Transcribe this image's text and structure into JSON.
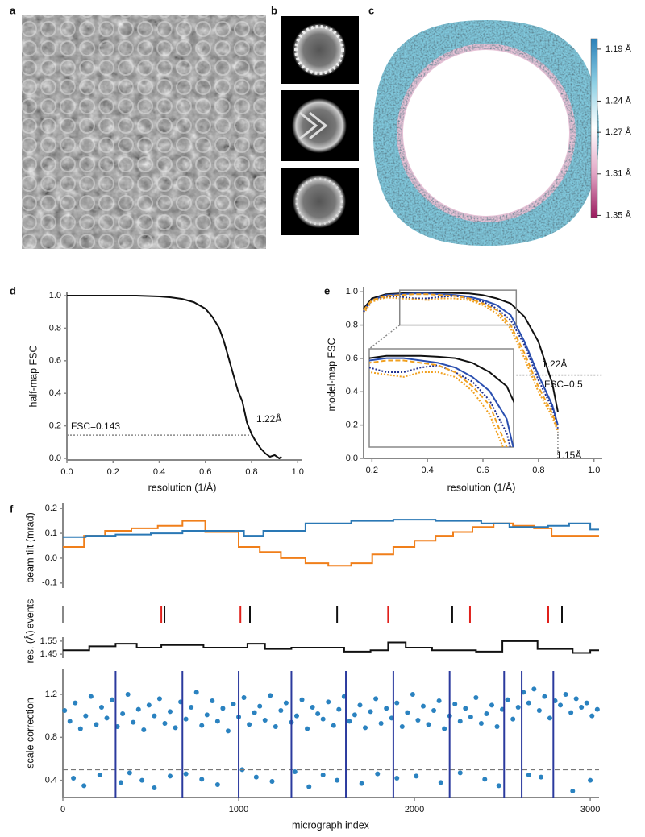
{
  "panel_labels": [
    "a",
    "b",
    "c",
    "d",
    "e",
    "f"
  ],
  "chart_data": [
    {
      "type": "colorbar",
      "colormap": [
        "#2b80b8",
        "#8fd0e4",
        "#ffffff",
        "#e2a7c6",
        "#9b1b5e"
      ],
      "clim": [
        1.18,
        1.352
      ],
      "ticks": [
        {
          "value": 1.19,
          "label": "1.19 Å"
        },
        {
          "value": 1.24,
          "label": "1.24 Å"
        },
        {
          "value": 1.27,
          "label": "1.27 Å"
        },
        {
          "value": 1.31,
          "label": "1.31 Å"
        },
        {
          "value": 1.35,
          "label": "1.35 Å"
        }
      ]
    },
    {
      "type": "line",
      "y_label": "half-map FSC",
      "x_label": "resolution (1/Å)",
      "xlim": [
        0,
        1.02
      ],
      "ylim": [
        -0.01,
        1.02
      ],
      "xticks": [
        {
          "value": 0,
          "label": "0.0"
        },
        0.2,
        0.4,
        0.6,
        0.8,
        {
          "value": 1,
          "label": "1.0"
        }
      ],
      "yticks": [
        {
          "value": 0,
          "label": "0.0"
        },
        0.2,
        0.4,
        0.6,
        0.8,
        {
          "value": 1,
          "label": "1.0"
        }
      ],
      "x": [
        0,
        0.1,
        0.2,
        0.3,
        0.4,
        0.45,
        0.5,
        0.55,
        0.6,
        0.63,
        0.66,
        0.68,
        0.7,
        0.72,
        0.74,
        0.76,
        0.78,
        0.8,
        0.82,
        0.84,
        0.86,
        0.88,
        0.9,
        0.92,
        0.93
      ],
      "series": [
        {
          "color": "#111111",
          "values": [
            1,
            1,
            1,
            1,
            0.995,
            0.99,
            0.98,
            0.96,
            0.92,
            0.87,
            0.8,
            0.72,
            0.62,
            0.52,
            0.42,
            0.35,
            0.22,
            0.15,
            0.1,
            0.06,
            0.03,
            0.01,
            0.02,
            0,
            0.01
          ]
        }
      ],
      "threshold": 0.143,
      "threshold_end": 0.8,
      "annotations": [
        "FSC=0.143",
        "1.22Å"
      ]
    },
    {
      "type": "line",
      "y_label": "model-map FSC",
      "x_label": "resolution (1/Å)",
      "xlim": [
        0.17,
        1.03
      ],
      "ylim": [
        0,
        1.03
      ],
      "xticks": [
        0.2,
        0.4,
        0.6,
        0.8,
        {
          "value": 1,
          "label": "1.0"
        }
      ],
      "yticks": [
        {
          "value": 0,
          "label": "0.0"
        },
        0.2,
        0.4,
        0.6,
        0.8,
        {
          "value": 1,
          "label": "1.0"
        }
      ],
      "x": [
        0.17,
        0.2,
        0.25,
        0.3,
        0.35,
        0.4,
        0.45,
        0.5,
        0.55,
        0.6,
        0.65,
        0.7,
        0.75,
        0.8,
        0.85,
        0.87
      ],
      "series": [
        {
          "color": "#111111",
          "dash": "solid",
          "values": [
            0.9,
            0.96,
            0.985,
            0.99,
            0.995,
            0.995,
            0.995,
            0.993,
            0.99,
            0.98,
            0.96,
            0.93,
            0.85,
            0.7,
            0.45,
            0.28
          ]
        },
        {
          "color": "#2a4fb0",
          "dash": "solid",
          "values": [
            0.89,
            0.95,
            0.98,
            0.985,
            0.99,
            0.99,
            0.985,
            0.98,
            0.97,
            0.95,
            0.92,
            0.86,
            0.7,
            0.5,
            0.32,
            0.2
          ]
        },
        {
          "color": "#1f2f8f",
          "dash": "dotted",
          "values": [
            0.88,
            0.95,
            0.97,
            0.97,
            0.96,
            0.96,
            0.97,
            0.975,
            0.96,
            0.94,
            0.9,
            0.83,
            0.68,
            0.47,
            0.3,
            0.18
          ]
        },
        {
          "color": "#f0a020",
          "dash": "dashed",
          "values": [
            0.89,
            0.95,
            0.975,
            0.98,
            0.985,
            0.985,
            0.98,
            0.975,
            0.96,
            0.93,
            0.89,
            0.8,
            0.63,
            0.43,
            0.27,
            0.17
          ]
        },
        {
          "color": "#f0a020",
          "dash": "dotted",
          "values": [
            0.87,
            0.94,
            0.965,
            0.96,
            0.955,
            0.95,
            0.96,
            0.96,
            0.95,
            0.92,
            0.87,
            0.78,
            0.6,
            0.4,
            0.25,
            0.16
          ]
        }
      ],
      "threshold": 0.5,
      "threshold_start": 0.72,
      "cutoff": 0.87,
      "inset": {
        "xlim": [
          0.3,
          0.72
        ],
        "ylim": [
          0.8,
          1.01
        ]
      },
      "annotations": [
        "1.22Å",
        "FSC=0.5",
        "1.15Å"
      ]
    },
    {
      "type": "step",
      "y_label": "beam tilt (mrad)",
      "xlim": [
        0,
        3050
      ],
      "ylim": [
        -0.12,
        0.22
      ],
      "yticks": [
        -0.1,
        {
          "value": 0,
          "label": "0.0"
        },
        0.1,
        0.2
      ],
      "series": [
        {
          "color": "#f07f1a",
          "x": [
            0,
            120,
            240,
            390,
            540,
            680,
            810,
            1000,
            1120,
            1240,
            1380,
            1510,
            1640,
            1760,
            1880,
            2000,
            2120,
            2220,
            2330,
            2450,
            2560,
            2680,
            2780
          ],
          "values": [
            0.045,
            0.09,
            0.11,
            0.12,
            0.13,
            0.15,
            0.105,
            0.045,
            0.025,
            0,
            -0.02,
            -0.03,
            -0.02,
            0.015,
            0.045,
            0.07,
            0.09,
            0.105,
            0.125,
            0.14,
            0.13,
            0.12,
            0.09
          ]
        },
        {
          "color": "#2a78b5",
          "x": [
            0,
            130,
            300,
            500,
            680,
            1030,
            1140,
            1380,
            1640,
            1880,
            2120,
            2380,
            2540,
            2760,
            2880,
            3000
          ],
          "values": [
            0.085,
            0.09,
            0.095,
            0.1,
            0.11,
            0.09,
            0.11,
            0.14,
            0.15,
            0.155,
            0.15,
            0.14,
            0.125,
            0.13,
            0.14,
            0.115
          ]
        }
      ]
    },
    {
      "type": "events",
      "y_label": "events",
      "xlim": [
        0,
        3050
      ],
      "series": [
        {
          "color": "#888888",
          "x": [
            0
          ]
        },
        {
          "color": "#e0201b",
          "x": [
            560,
            1010,
            1850,
            2316,
            2761
          ]
        },
        {
          "color": "#111111",
          "x": [
            578,
            1064,
            1560,
            2215,
            2839
          ]
        }
      ]
    },
    {
      "type": "step",
      "y_label": "res. (Å)",
      "xlim": [
        0,
        3050
      ],
      "ylim": [
        1.42,
        1.58
      ],
      "yticks": [
        1.45,
        1.55
      ],
      "series": [
        {
          "color": "#111111",
          "x": [
            0,
            150,
            300,
            420,
            560,
            800,
            1050,
            1150,
            1300,
            1600,
            1750,
            1850,
            1950,
            2100,
            2350,
            2500,
            2700,
            2900,
            3000
          ],
          "values": [
            1.48,
            1.51,
            1.53,
            1.5,
            1.52,
            1.5,
            1.53,
            1.49,
            1.5,
            1.47,
            1.48,
            1.54,
            1.5,
            1.48,
            1.47,
            1.55,
            1.49,
            1.46,
            1.48
          ]
        }
      ]
    },
    {
      "type": "scatter",
      "y_label": "scale correction",
      "x_label": "micrograph index",
      "xlim": [
        0,
        3050
      ],
      "ylim": [
        0.24,
        1.44
      ],
      "xticks": [
        0,
        1000,
        2000,
        3000
      ],
      "yticks": [
        0.4,
        0.8,
        1.2
      ],
      "color": "#2a82c0",
      "x": [
        10,
        40,
        70,
        100,
        130,
        160,
        190,
        220,
        250,
        280,
        310,
        340,
        370,
        400,
        430,
        460,
        490,
        520,
        550,
        580,
        610,
        640,
        670,
        700,
        730,
        760,
        790,
        820,
        850,
        880,
        910,
        940,
        970,
        1000,
        1030,
        1060,
        1090,
        1120,
        1150,
        1180,
        1210,
        1240,
        1270,
        1300,
        1330,
        1360,
        1390,
        1420,
        1450,
        1480,
        1510,
        1540,
        1570,
        1600,
        1630,
        1660,
        1690,
        1720,
        1750,
        1780,
        1810,
        1840,
        1870,
        1900,
        1930,
        1960,
        1990,
        2020,
        2050,
        2080,
        2110,
        2140,
        2170,
        2200,
        2230,
        2260,
        2290,
        2320,
        2350,
        2380,
        2410,
        2440,
        2470,
        2500,
        2530,
        2560,
        2590,
        2620,
        2650,
        2680,
        2710,
        2740,
        2770,
        2800,
        2830,
        2860,
        2890,
        2920,
        2950,
        2980,
        3010,
        3040,
        60,
        120,
        210,
        330,
        380,
        450,
        520,
        610,
        700,
        790,
        880,
        1020,
        1100,
        1190,
        1320,
        1400,
        1480,
        1560,
        1700,
        1790,
        1900,
        2010,
        2150,
        2260,
        2400,
        2480,
        2650,
        2720,
        2900,
        3000
      ],
      "values": [
        1.05,
        0.95,
        1.12,
        0.88,
        1.0,
        1.18,
        0.92,
        1.08,
        0.98,
        1.15,
        0.9,
        1.02,
        1.2,
        0.94,
        1.06,
        0.87,
        1.1,
        1.0,
        1.16,
        0.93,
        1.04,
        0.89,
        1.13,
        0.97,
        1.08,
        1.22,
        0.91,
        1.01,
        1.14,
        0.95,
        1.07,
        0.86,
        1.11,
        0.99,
        1.17,
        0.92,
        1.03,
        1.09,
        0.96,
        1.19,
        0.9,
        1.05,
        1.12,
        0.94,
        1.0,
        1.15,
        0.88,
        1.08,
        1.02,
        0.97,
        1.13,
        0.91,
        1.06,
        1.18,
        0.95,
        1.01,
        1.1,
        0.89,
        1.04,
        1.16,
        0.93,
        1.07,
        0.98,
        1.12,
        0.9,
        1.03,
        1.2,
        0.96,
        1.09,
        0.92,
        1.05,
        1.14,
        0.88,
        1.0,
        1.11,
        0.95,
        1.07,
        0.99,
        1.17,
        0.93,
        1.02,
        1.1,
        0.9,
        1.06,
        1.15,
        0.97,
        1.08,
        1.22,
        1.12,
        1.25,
        1.05,
        1.18,
        0.98,
        1.14,
        1.1,
        1.2,
        1.03,
        1.16,
        1.08,
        1.12,
        1.0,
        1.06,
        0.42,
        0.35,
        0.45,
        0.38,
        0.47,
        0.4,
        0.33,
        0.44,
        0.46,
        0.41,
        0.36,
        0.5,
        0.43,
        0.39,
        0.48,
        0.34,
        0.45,
        0.4,
        0.37,
        0.46,
        0.42,
        0.44,
        0.38,
        0.47,
        0.41,
        0.35,
        0.45,
        0.43,
        0.3,
        0.4
      ],
      "dividers": [
        300,
        680,
        1000,
        1300,
        1610,
        1880,
        2200,
        2510,
        2610,
        2790
      ],
      "divider_color": "#2b3a9e",
      "threshold": 0.5
    }
  ]
}
